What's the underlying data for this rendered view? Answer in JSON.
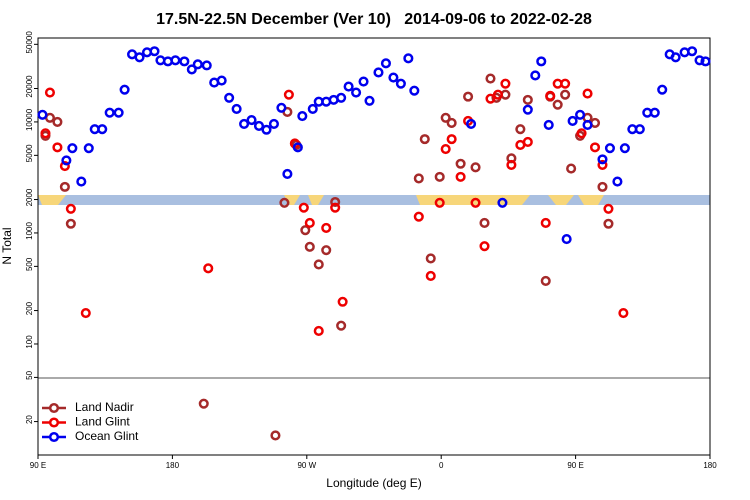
{
  "chart_data": {
    "type": "scatter",
    "title": "17.5N-22.5N December (Ver 10)   2014-09-06 to 2022-02-28",
    "xlabel": "Longitude (deg E)",
    "ylabel": "N Total",
    "xlim": [
      90,
      540
    ],
    "xticks": [
      {
        "value": 90,
        "label": "90 E"
      },
      {
        "value": 180,
        "label": "180"
      },
      {
        "value": 270,
        "label": "90 W"
      },
      {
        "value": 360,
        "label": "0"
      },
      {
        "value": 450,
        "label": "90 E"
      },
      {
        "value": 540,
        "label": "180"
      }
    ],
    "ylim": [
      10,
      57000
    ],
    "log_y": true,
    "yticks": [
      20,
      50,
      100,
      200,
      500,
      1000,
      2000,
      5000,
      10000,
      20000,
      50000
    ],
    "legend": "lower left",
    "series": [
      {
        "name": "Land Nadir",
        "color": "#a52a2a",
        "x": [
          95,
          98,
          103,
          108,
          112,
          201,
          249,
          255,
          257,
          263,
          269,
          272,
          278,
          283,
          289,
          293,
          345,
          349,
          353,
          359,
          363,
          367,
          373,
          378,
          383,
          389,
          393,
          397,
          403,
          407,
          413,
          418,
          430,
          433,
          438,
          443,
          447,
          453,
          458,
          463,
          468,
          472
        ],
        "values": [
          7500,
          10900,
          10000,
          2600,
          1210,
          29,
          15,
          1870,
          12300,
          6200,
          1060,
          750,
          520,
          700,
          1900,
          146,
          3100,
          7000,
          590,
          3200,
          10900,
          9800,
          4200,
          16900,
          3900,
          1230,
          24600,
          16500,
          17600,
          4700,
          8600,
          15800,
          370,
          16900,
          14300,
          17600,
          3800,
          7500,
          10900,
          9800,
          2600,
          1210
        ]
      },
      {
        "name": "Land Glint",
        "color": "#ee0000",
        "x": [
          95,
          98,
          103,
          108,
          112,
          122,
          204,
          258,
          262,
          268,
          272,
          278,
          283,
          289,
          294,
          345,
          353,
          359,
          363,
          367,
          373,
          378,
          383,
          389,
          393,
          398,
          403,
          407,
          413,
          418,
          430,
          433,
          438,
          443,
          454,
          458,
          463,
          468,
          472,
          482
        ],
        "values": [
          7900,
          18400,
          5900,
          4000,
          1650,
          190,
          480,
          17600,
          6400,
          1690,
          1230,
          131,
          1110,
          1690,
          240,
          1400,
          410,
          1870,
          5700,
          7000,
          3200,
          10200,
          1870,
          760,
          16200,
          17600,
          22100,
          4100,
          6200,
          6600,
          1230,
          17200,
          22100,
          22100,
          7900,
          18000,
          5900,
          4100,
          1650,
          190
        ]
      },
      {
        "name": "Ocean Glint",
        "color": "#0000ee",
        "x": [
          93,
          109,
          113,
          119,
          124,
          128,
          133,
          138,
          144,
          148,
          153,
          158,
          163,
          168,
          172,
          177,
          182,
          188,
          193,
          197,
          203,
          208,
          213,
          218,
          223,
          228,
          233,
          238,
          243,
          248,
          253,
          257,
          264,
          267,
          274,
          278,
          283,
          288,
          293,
          298,
          303,
          308,
          312,
          318,
          323,
          328,
          333,
          338,
          342,
          380,
          401,
          418,
          423,
          427,
          432,
          444,
          448,
          453,
          458,
          468,
          473,
          478,
          483,
          488,
          493,
          498,
          503,
          508,
          513,
          517,
          523,
          528,
          533,
          537
        ],
        "values": [
          11600,
          4500,
          5800,
          2900,
          5800,
          8600,
          8600,
          12100,
          12100,
          19500,
          40600,
          38200,
          42400,
          43300,
          35900,
          35100,
          35900,
          35100,
          29700,
          33000,
          32300,
          22600,
          23600,
          16500,
          13100,
          9600,
          10400,
          9200,
          8500,
          9600,
          13400,
          3400,
          5900,
          11300,
          13100,
          15200,
          15200,
          15800,
          16500,
          20800,
          18400,
          23100,
          15500,
          27900,
          33700,
          25100,
          22100,
          37400,
          19100,
          9600,
          1870,
          12900,
          26200,
          35100,
          9400,
          880,
          10200,
          11600,
          9400,
          4600,
          5800,
          2900,
          5800,
          8600,
          8600,
          12100,
          12100,
          19500,
          40600,
          38200,
          42400,
          43300,
          35900,
          35100
        ]
      }
    ]
  }
}
